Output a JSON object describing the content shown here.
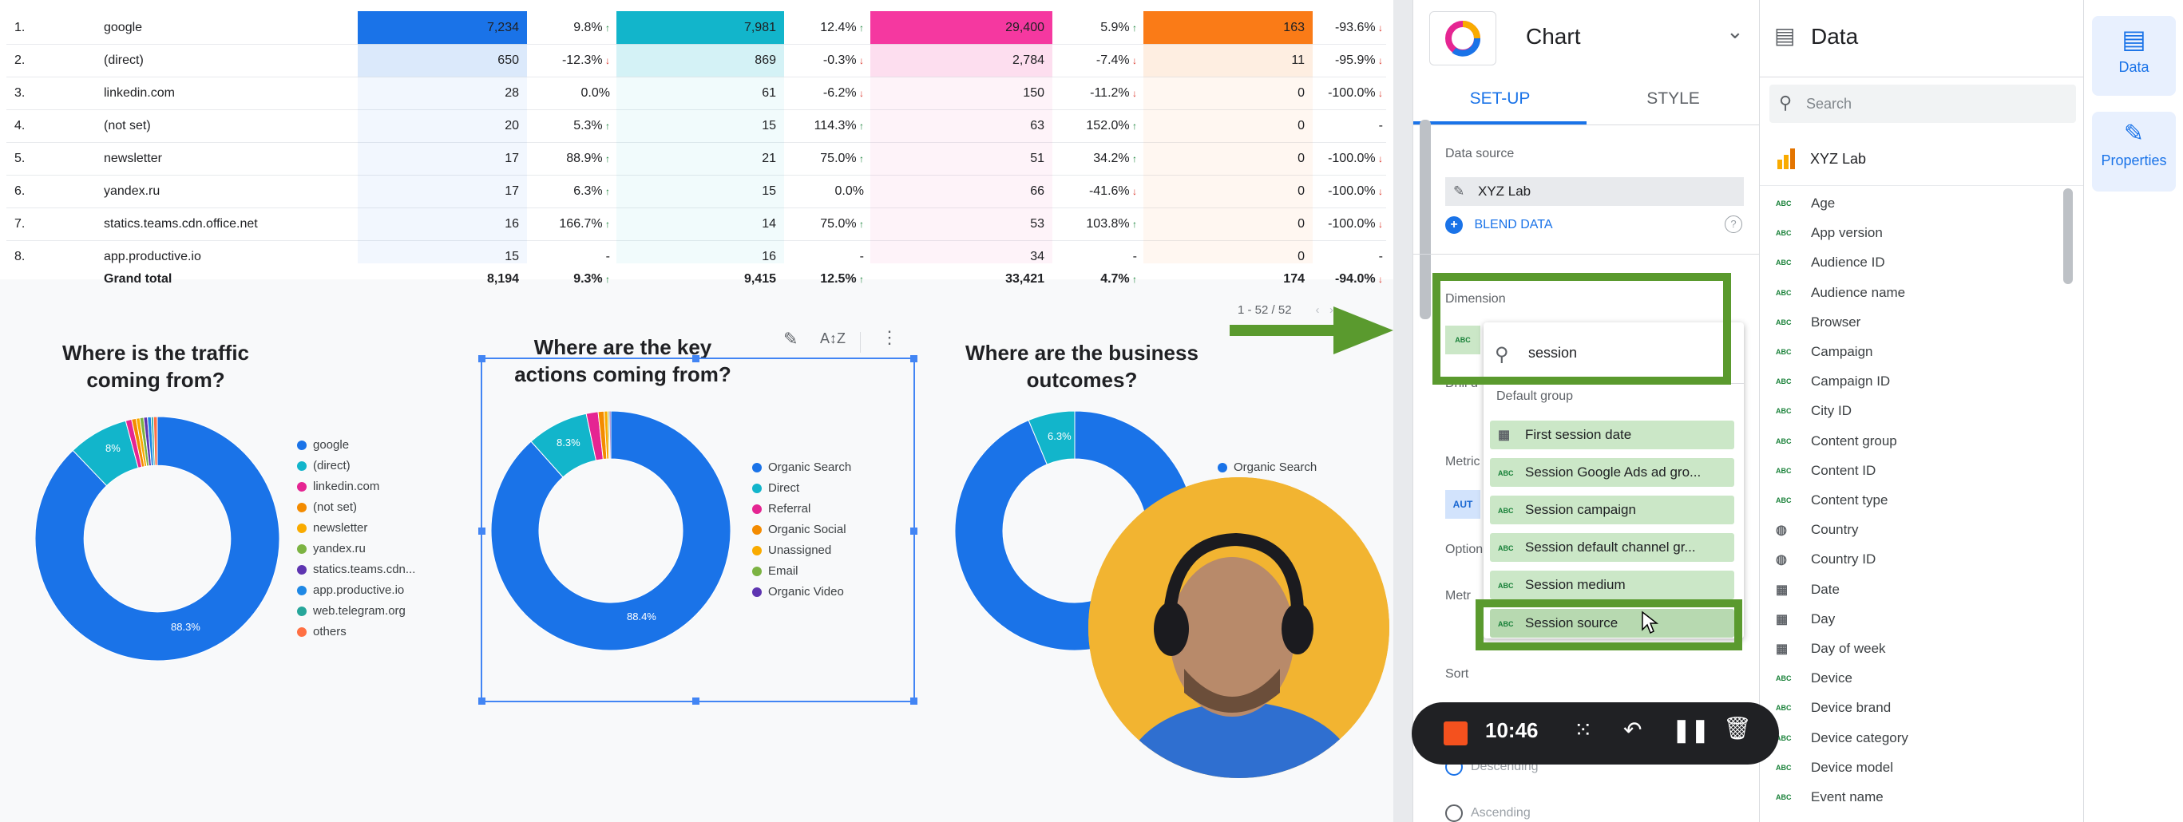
{
  "table": {
    "rows": [
      {
        "idx": "1.",
        "source": "google",
        "sessions": "7,234",
        "sessions_delta": "9.8%",
        "sessions_dir": "up",
        "views": "7,981",
        "views_delta": "12.4%",
        "views_dir": "up",
        "events": "29,400",
        "events_delta": "5.9%",
        "events_dir": "up",
        "conversions": "163",
        "conversions_delta": "-93.6%",
        "conversions_dir": "down"
      },
      {
        "idx": "2.",
        "source": "(direct)",
        "sessions": "650",
        "sessions_delta": "-12.3%",
        "sessions_dir": "down",
        "views": "869",
        "views_delta": "-0.3%",
        "views_dir": "down",
        "events": "2,784",
        "events_delta": "-7.4%",
        "events_dir": "down",
        "conversions": "11",
        "conversions_delta": "-95.9%",
        "conversions_dir": "down"
      },
      {
        "idx": "3.",
        "source": "linkedin.com",
        "sessions": "28",
        "sessions_delta": "0.0%",
        "sessions_dir": "",
        "views": "61",
        "views_delta": "-6.2%",
        "views_dir": "down",
        "events": "150",
        "events_delta": "-11.2%",
        "events_dir": "down",
        "conversions": "0",
        "conversions_delta": "-100.0%",
        "conversions_dir": "down"
      },
      {
        "idx": "4.",
        "source": "(not set)",
        "sessions": "20",
        "sessions_delta": "5.3%",
        "sessions_dir": "up",
        "views": "15",
        "views_delta": "114.3%",
        "views_dir": "up",
        "events": "63",
        "events_delta": "152.0%",
        "events_dir": "up",
        "conversions": "0",
        "conversions_delta": "-",
        "conversions_dir": ""
      },
      {
        "idx": "5.",
        "source": "newsletter",
        "sessions": "17",
        "sessions_delta": "88.9%",
        "sessions_dir": "up",
        "views": "21",
        "views_delta": "75.0%",
        "views_dir": "up",
        "events": "51",
        "events_delta": "34.2%",
        "events_dir": "up",
        "conversions": "0",
        "conversions_delta": "-100.0%",
        "conversions_dir": "down"
      },
      {
        "idx": "6.",
        "source": "yandex.ru",
        "sessions": "17",
        "sessions_delta": "6.3%",
        "sessions_dir": "up",
        "views": "15",
        "views_delta": "0.0%",
        "views_dir": "",
        "events": "66",
        "events_delta": "-41.6%",
        "events_dir": "down",
        "conversions": "0",
        "conversions_delta": "-100.0%",
        "conversions_dir": "down"
      },
      {
        "idx": "7.",
        "source": "statics.teams.cdn.office.net",
        "sessions": "16",
        "sessions_delta": "166.7%",
        "sessions_dir": "up",
        "views": "14",
        "views_delta": "75.0%",
        "views_dir": "up",
        "events": "53",
        "events_delta": "103.8%",
        "events_dir": "up",
        "conversions": "0",
        "conversions_delta": "-100.0%",
        "conversions_dir": "down"
      },
      {
        "idx": "8.",
        "source": "app.productive.io",
        "sessions": "15",
        "sessions_delta": "-",
        "sessions_dir": "",
        "views": "16",
        "views_delta": "-",
        "views_dir": "",
        "events": "34",
        "events_delta": "-",
        "events_dir": "",
        "conversions": "0",
        "conversions_delta": "-",
        "conversions_dir": ""
      }
    ],
    "total": {
      "label": "Grand total",
      "sessions": "8,194",
      "sessions_delta": "9.3%",
      "views": "9,415",
      "views_delta": "12.5%",
      "events": "33,421",
      "events_delta": "4.7%",
      "conversions": "174",
      "conversions_delta": "-94.0%"
    },
    "pager": "1 - 52 / 52",
    "colors": {
      "sessions": "#1a73e8",
      "views": "#12b5cb",
      "events": "#f538a0",
      "conversions": "#fa7b17"
    }
  },
  "charts": [
    {
      "title": "Where is the traffic coming from?",
      "legend": [
        "google",
        "(direct)",
        "linkedin.com",
        "(not set)",
        "newsletter",
        "yandex.ru",
        "statics.teams.cdn...",
        "app.productive.io",
        "web.telegram.org",
        "others"
      ],
      "legend_colors": [
        "#1a73e8",
        "#12b5cb",
        "#e52592",
        "#f38b00",
        "#f9ab00",
        "#7cb342",
        "#5e35b1",
        "#1e88e5",
        "#26a69a",
        "#ff7043"
      ],
      "slice_labels": [
        "88.3%",
        "8%"
      ]
    },
    {
      "title": "Where are the key actions coming from?",
      "legend": [
        "Organic Search",
        "Direct",
        "Referral",
        "Organic Social",
        "Unassigned",
        "Email",
        "Organic Video"
      ],
      "legend_colors": [
        "#1a73e8",
        "#12b5cb",
        "#e52592",
        "#f38b00",
        "#f9ab00",
        "#7cb342",
        "#5e35b1"
      ],
      "slice_labels": [
        "88.4%",
        "8.3%"
      ]
    },
    {
      "title": "Where are the business outcomes?",
      "legend": [
        "Organic Search"
      ],
      "legend_colors": [
        "#1a73e8"
      ],
      "slice_labels": [
        "6.3%"
      ]
    }
  ],
  "chart_panel": {
    "header": "Chart",
    "tabs": [
      "SET-UP",
      "STYLE"
    ],
    "data_source_label": "Data source",
    "data_source": "XYZ Lab",
    "blend_data": "BLEND DATA",
    "dimension_label": "Dimension",
    "search_value": "session",
    "group_label": "Default group",
    "dropdown_items": [
      "First session date",
      "Session Google Ads ad gro...",
      "Session campaign",
      "Session default channel gr...",
      "Session medium",
      "Session source"
    ],
    "side_labels": [
      "Drill d",
      "Metric",
      "AUT",
      "Option",
      "Metr",
      "Sort",
      "Descending",
      "Ascending"
    ]
  },
  "data_panel": {
    "header": "Data",
    "search_placeholder": "Search",
    "source": "XYZ Lab",
    "fields": [
      {
        "name": "Age",
        "type": "ABC"
      },
      {
        "name": "App version",
        "type": "ABC"
      },
      {
        "name": "Audience ID",
        "type": "ABC"
      },
      {
        "name": "Audience name",
        "type": "ABC"
      },
      {
        "name": "Browser",
        "type": "ABC"
      },
      {
        "name": "Campaign",
        "type": "ABC"
      },
      {
        "name": "Campaign ID",
        "type": "ABC"
      },
      {
        "name": "City ID",
        "type": "ABC"
      },
      {
        "name": "Content group",
        "type": "ABC"
      },
      {
        "name": "Content ID",
        "type": "ABC"
      },
      {
        "name": "Content type",
        "type": "ABC"
      },
      {
        "name": "Country",
        "type": "geo"
      },
      {
        "name": "Country ID",
        "type": "geo"
      },
      {
        "name": "Date",
        "type": "cal"
      },
      {
        "name": "Day",
        "type": "cal"
      },
      {
        "name": "Day of week",
        "type": "cal"
      },
      {
        "name": "Device",
        "type": "ABC"
      },
      {
        "name": "Device brand",
        "type": "ABC"
      },
      {
        "name": "Device category",
        "type": "ABC"
      },
      {
        "name": "Device model",
        "type": "ABC"
      },
      {
        "name": "Event name",
        "type": "ABC"
      }
    ]
  },
  "rail": {
    "data": "Data",
    "properties": "Properties"
  },
  "recorder": {
    "time": "10:46"
  }
}
